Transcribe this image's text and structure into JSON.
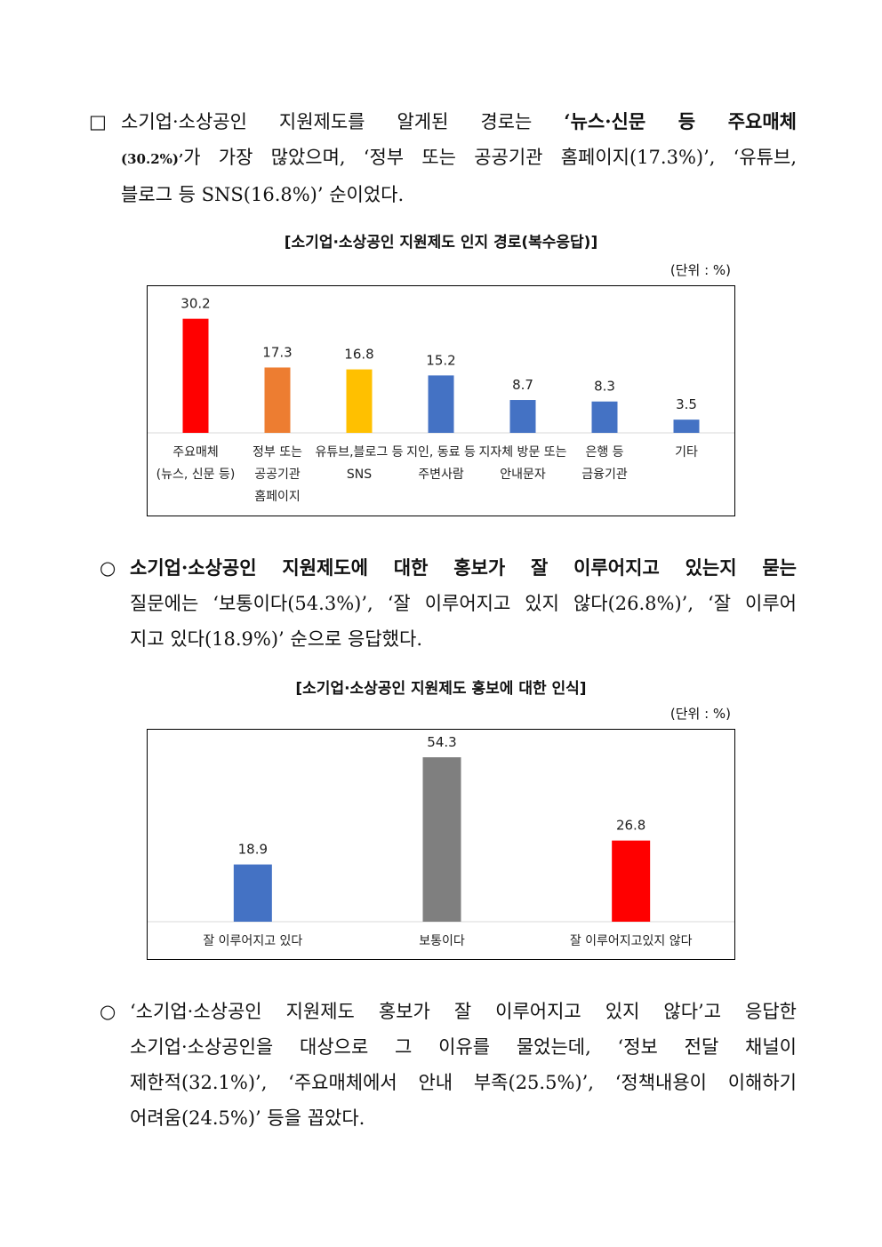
{
  "para1": {
    "bullet": "□",
    "lines": [
      [
        "소기업·소상공인 지원제도를 알게된 경로는 ",
        "‘뉴스·신문 등 주요매체",
        ""
      ],
      [
        "",
        "(30.2%)’",
        "가 가장 많았으며, ‘정부 또는 공공기관 홈페이지(17.3%)’, ‘유튜브,"
      ],
      [
        "블로그 등 SNS(16.8%)’ 순이었다.",
        "",
        ""
      ]
    ]
  },
  "chart1": {
    "title": "[소기업·소상공인 지원제도 인지 경로(복수응답)]",
    "unit": "(단위 : %)"
  },
  "para2": {
    "bullet": "○",
    "line1": "소기업·소상공인 지원제도에 대한 홍보가 잘 이루어지고 있는지 묻는",
    "line2": "질문에는 ‘보통이다(54.3%)’, ‘잘 이루어지고 있지 않다(26.8%)’, ‘잘 이루어",
    "line3": "지고 있다(18.9%)’ 순으로 응답했다."
  },
  "chart2": {
    "title": "[소기업·소상공인 지원제도 홍보에 대한 인식]",
    "unit": "(단위 : %)"
  },
  "para3": {
    "bullet": "○",
    "line1": "‘소기업·소상공인 지원제도 홍보가 잘 이루어지고 있지 않다’고 응답한",
    "line2": "소기업·소상공인을 대상으로 그 이유를 물었는데, ‘정보 전달 채널이",
    "line3": "제한적(32.1%)’, ‘주요매체에서 안내 부족(25.5%)’, ‘정책내용이 이해하기",
    "line4": "어려움(24.5%)’ 등을 꼽았다."
  },
  "chart_data": [
    {
      "type": "bar",
      "title": "[소기업·소상공인 지원제도 인지 경로(복수응답)]",
      "unit": "(단위 : %)",
      "categories": [
        [
          "주요매체",
          "(뉴스, 신문 등)"
        ],
        [
          "정부 또는",
          "공공기관",
          "홈페이지"
        ],
        [
          "유튜브,블로그 등",
          "SNS"
        ],
        [
          "지인, 동료 등",
          "주변사람"
        ],
        [
          "지자체 방문 또는",
          "안내문자"
        ],
        [
          "은행 등",
          "금융기관"
        ],
        [
          "기타"
        ]
      ],
      "values": [
        30.2,
        17.3,
        16.8,
        15.2,
        8.7,
        8.3,
        3.5
      ],
      "value_labels": [
        "30.2",
        "17.3",
        "16.8",
        "15.2",
        "8.7",
        "8.3",
        "3.5"
      ],
      "colors": [
        "#ff0000",
        "#ed7d31",
        "#ffc000",
        "#4472c4",
        "#4472c4",
        "#4472c4",
        "#4472c4"
      ],
      "ylim": [
        0,
        32
      ],
      "grid": false,
      "legend": "none"
    },
    {
      "type": "bar",
      "title": "[소기업·소상공인 지원제도 홍보에 대한 인식]",
      "unit": "(단위 : %)",
      "categories": [
        [
          "잘 이루어지고 있다"
        ],
        [
          "보통이다"
        ],
        [
          "잘 이루어지고있지 않다"
        ]
      ],
      "values": [
        18.9,
        54.3,
        26.8
      ],
      "value_labels": [
        "18.9",
        "54.3",
        "26.8"
      ],
      "colors": [
        "#4472c4",
        "#7f7f7f",
        "#ff0000"
      ],
      "ylim": [
        0,
        54.3
      ],
      "grid": false,
      "legend": "none"
    }
  ]
}
